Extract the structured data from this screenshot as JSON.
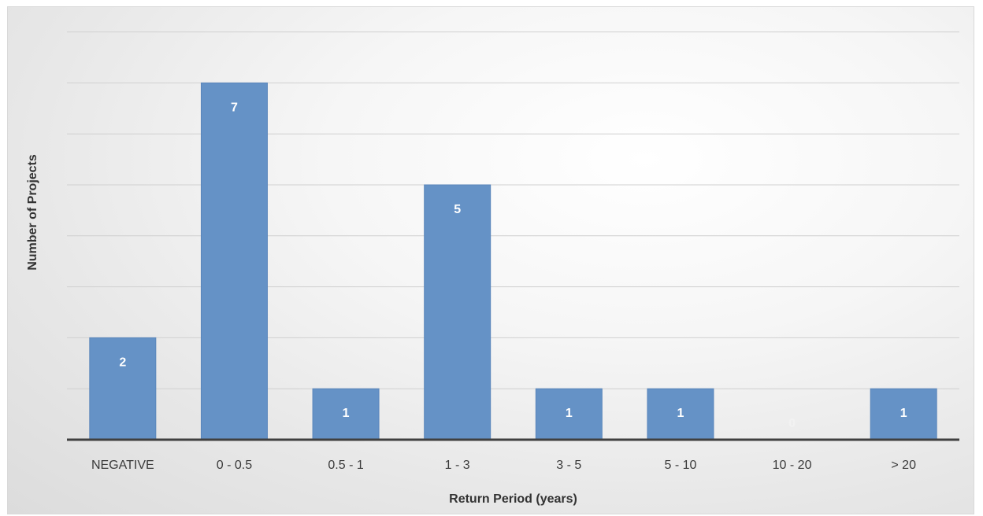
{
  "chart_data": {
    "type": "bar",
    "title": "",
    "xlabel": "Return Period (years)",
    "ylabel": "Number of Projects",
    "categories": [
      "NEGATIVE",
      "0 - 0.5",
      "0.5 - 1",
      "1 - 3",
      "3 - 5",
      "5 - 10",
      "10 - 20",
      "> 20"
    ],
    "values": [
      2,
      7,
      1,
      5,
      1,
      1,
      0,
      1
    ],
    "data_labels": [
      "2",
      "7",
      "1",
      "5",
      "1",
      "1",
      "0",
      "1"
    ],
    "ylim": [
      0,
      8
    ],
    "gridlines": true,
    "legend": "none",
    "colors": {
      "bar": "#6592c6",
      "bar_label": "#ffffff",
      "gridline": "#d0d0d0",
      "axis": "#404040"
    }
  }
}
